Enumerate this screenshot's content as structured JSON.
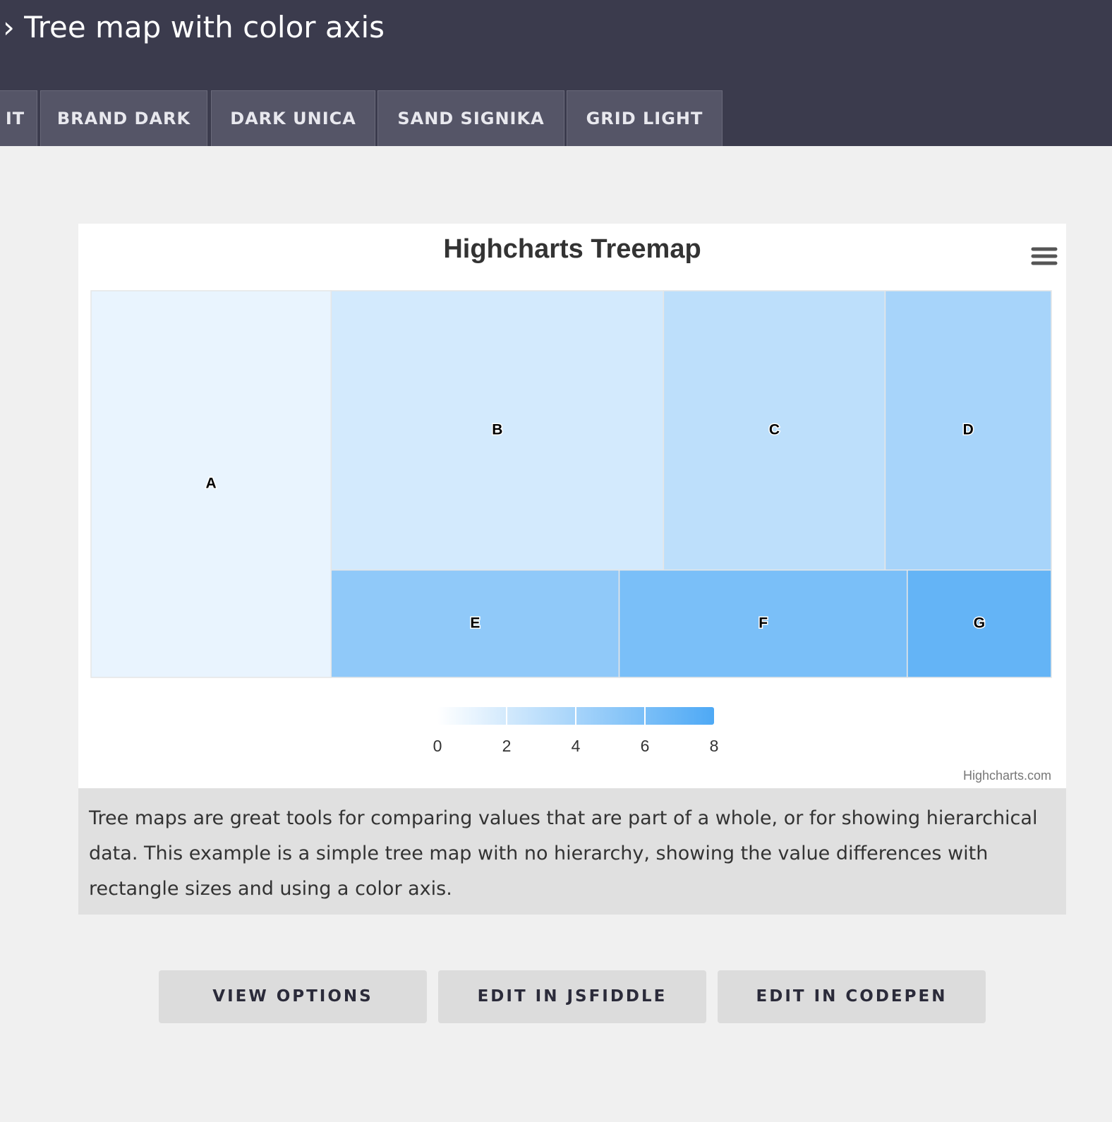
{
  "header": {
    "title": "› Tree map with color axis",
    "tabs": [
      "IT",
      "BRAND DARK",
      "DARK UNICA",
      "SAND SIGNIKA",
      "GRID LIGHT"
    ]
  },
  "chart_data": {
    "type": "treemap",
    "title": "Highcharts Treemap",
    "credits": "Highcharts.com",
    "points": [
      {
        "name": "A",
        "value": 6,
        "colorValue": 1
      },
      {
        "name": "B",
        "value": 6,
        "colorValue": 2
      },
      {
        "name": "C",
        "value": 4,
        "colorValue": 3
      },
      {
        "name": "D",
        "value": 3,
        "colorValue": 4
      },
      {
        "name": "E",
        "value": 2,
        "colorValue": 5
      },
      {
        "name": "F",
        "value": 2,
        "colorValue": 6
      },
      {
        "name": "G",
        "value": 1,
        "colorValue": 7
      }
    ],
    "color_axis": {
      "xlim": [
        0,
        8
      ],
      "xticks": [
        0,
        2,
        4,
        6,
        8
      ],
      "min_color": "#FFFFFF",
      "max_color": "#4EA9F5"
    }
  },
  "description": "Tree maps are great tools for comparing values that are part of a whole, or for showing hierarchical data. This example is a simple tree map with no hierarchy, showing the value differences with rectangle sizes and using a color axis.",
  "buttons": [
    "VIEW OPTIONS",
    "EDIT IN JSFIDDLE",
    "EDIT IN CODEPEN"
  ]
}
